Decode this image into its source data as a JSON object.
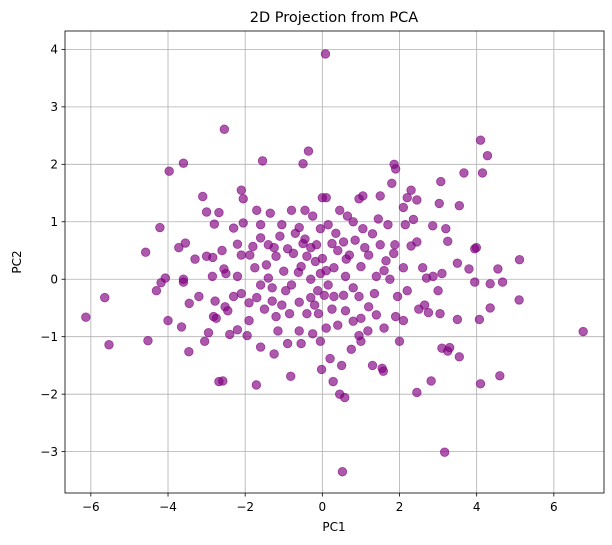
{
  "chart_data": {
    "type": "scatter",
    "title": "2D Projection from PCA",
    "xlabel": "PC1",
    "ylabel": "PC2",
    "xlim": [
      -6.67,
      7.3
    ],
    "ylim": [
      -3.72,
      4.32
    ],
    "xticks": [
      -6,
      -4,
      -2,
      0,
      2,
      4,
      6
    ],
    "yticks": [
      -3,
      -2,
      -1,
      0,
      1,
      2,
      3,
      4
    ],
    "grid": true,
    "marker_color": "#800080",
    "marker_alpha": 0.65,
    "series": [
      {
        "points": [
          [
            0.08,
            3.92
          ],
          [
            -2.54,
            2.61
          ],
          [
            -1.55,
            2.06
          ],
          [
            -3.6,
            2.02
          ],
          [
            -0.5,
            2.01
          ],
          [
            -0.36,
            2.23
          ],
          [
            -3.97,
            1.88
          ],
          [
            -2.1,
            1.55
          ],
          [
            -2.05,
            1.4
          ],
          [
            -3.1,
            1.44
          ],
          [
            -3.0,
            1.17
          ],
          [
            -2.68,
            1.16
          ],
          [
            -2.8,
            0.96
          ],
          [
            -2.3,
            0.89
          ],
          [
            -1.7,
            1.2
          ],
          [
            -1.35,
            1.15
          ],
          [
            -0.8,
            1.2
          ],
          [
            0.0,
            1.42
          ],
          [
            0.1,
            1.42
          ],
          [
            0.8,
            1.0
          ],
          [
            0.95,
            1.4
          ],
          [
            1.05,
            1.45
          ],
          [
            1.5,
            1.45
          ],
          [
            1.8,
            1.67
          ],
          [
            1.86,
            2.0
          ],
          [
            1.9,
            1.92
          ],
          [
            2.15,
            0.95
          ],
          [
            2.2,
            1.42
          ],
          [
            2.45,
            1.38
          ],
          [
            2.3,
            1.55
          ],
          [
            2.36,
            1.04
          ],
          [
            3.07,
            1.7
          ],
          [
            3.03,
            1.32
          ],
          [
            2.86,
            0.93
          ],
          [
            3.2,
            0.88
          ],
          [
            3.25,
            0.66
          ],
          [
            3.67,
            1.85
          ],
          [
            3.55,
            1.28
          ],
          [
            3.99,
            0.55
          ],
          [
            3.95,
            0.53
          ],
          [
            4.1,
            2.42
          ],
          [
            4.28,
            2.15
          ],
          [
            4.15,
            1.85
          ],
          [
            -4.21,
            0.9
          ],
          [
            -4.58,
            0.47
          ],
          [
            -3.72,
            0.55
          ],
          [
            -3.55,
            0.63
          ],
          [
            -3.3,
            0.35
          ],
          [
            -3.0,
            0.4
          ],
          [
            -2.84,
            0.38
          ],
          [
            -2.6,
            0.5
          ],
          [
            -2.2,
            0.61
          ],
          [
            -2.1,
            0.42
          ],
          [
            -1.8,
            0.57
          ],
          [
            -1.6,
            0.72
          ],
          [
            -1.4,
            0.6
          ],
          [
            -1.25,
            0.55
          ],
          [
            -1.1,
            0.75
          ],
          [
            -0.9,
            0.53
          ],
          [
            -0.7,
            0.8
          ],
          [
            -0.6,
            0.9
          ],
          [
            -0.45,
            0.7
          ],
          [
            -0.3,
            0.55
          ],
          [
            -0.15,
            0.6
          ],
          [
            -0.05,
            0.88
          ],
          [
            0.15,
            0.95
          ],
          [
            0.35,
            0.8
          ],
          [
            0.55,
            0.65
          ],
          [
            0.7,
            0.42
          ],
          [
            0.85,
            0.68
          ],
          [
            1.1,
            0.55
          ],
          [
            1.3,
            0.79
          ],
          [
            1.5,
            0.6
          ],
          [
            1.65,
            0.32
          ],
          [
            1.85,
            0.45
          ],
          [
            2.3,
            0.58
          ],
          [
            2.6,
            0.2
          ],
          [
            2.87,
            0.05
          ],
          [
            3.1,
            0.1
          ],
          [
            3.5,
            0.28
          ],
          [
            3.8,
            0.18
          ],
          [
            4.35,
            -0.08
          ],
          [
            4.55,
            0.18
          ],
          [
            5.11,
            0.34
          ],
          [
            -4.07,
            0.02
          ],
          [
            -4.18,
            -0.06
          ],
          [
            -4.3,
            -0.2
          ],
          [
            -3.6,
            -0.0
          ],
          [
            -3.45,
            -0.42
          ],
          [
            -3.2,
            -0.3
          ],
          [
            -2.78,
            -0.38
          ],
          [
            -2.52,
            -0.48
          ],
          [
            -2.3,
            -0.3
          ],
          [
            -2.1,
            -0.25
          ],
          [
            -1.9,
            -0.41
          ],
          [
            -1.7,
            -0.32
          ],
          [
            -1.5,
            -0.52
          ],
          [
            -1.3,
            -0.38
          ],
          [
            -1.05,
            -0.45
          ],
          [
            -0.85,
            -0.6
          ],
          [
            -0.6,
            -0.4
          ],
          [
            -0.4,
            -0.6
          ],
          [
            -0.2,
            -0.45
          ],
          [
            0.05,
            -0.28
          ],
          [
            0.25,
            -0.52
          ],
          [
            0.4,
            -0.8
          ],
          [
            0.6,
            -0.55
          ],
          [
            0.8,
            -0.73
          ],
          [
            1.0,
            -0.68
          ],
          [
            1.2,
            -0.48
          ],
          [
            1.4,
            -0.62
          ],
          [
            1.6,
            -0.85
          ],
          [
            1.9,
            -0.65
          ],
          [
            2.1,
            -0.72
          ],
          [
            2.5,
            -0.52
          ],
          [
            2.75,
            -0.58
          ],
          [
            3.05,
            -0.6
          ],
          [
            3.5,
            -0.7
          ],
          [
            4.07,
            -0.7
          ],
          [
            4.35,
            -0.5
          ],
          [
            5.1,
            -0.36
          ],
          [
            -6.13,
            -0.66
          ],
          [
            -5.64,
            -0.32
          ],
          [
            -5.53,
            -1.14
          ],
          [
            -4.52,
            -1.07
          ],
          [
            -4.0,
            -0.72
          ],
          [
            -3.65,
            -0.83
          ],
          [
            -3.46,
            -1.26
          ],
          [
            -3.05,
            -1.08
          ],
          [
            -2.95,
            -0.93
          ],
          [
            -2.82,
            -0.65
          ],
          [
            -2.75,
            -0.68
          ],
          [
            -2.4,
            -0.96
          ],
          [
            -2.2,
            -0.88
          ],
          [
            -1.95,
            -0.98
          ],
          [
            -1.6,
            -1.18
          ],
          [
            -1.25,
            -1.3
          ],
          [
            -0.9,
            -1.12
          ],
          [
            -0.55,
            -1.12
          ],
          [
            -0.25,
            -0.95
          ],
          [
            -0.05,
            -1.08
          ],
          [
            0.2,
            -1.38
          ],
          [
            0.5,
            -1.5
          ],
          [
            0.75,
            -1.22
          ],
          [
            1.0,
            -1.08
          ],
          [
            1.3,
            -1.5
          ],
          [
            1.55,
            -1.55
          ],
          [
            2.0,
            -1.08
          ],
          [
            3.1,
            -1.2
          ],
          [
            3.3,
            -1.19
          ],
          [
            3.55,
            -1.35
          ],
          [
            3.25,
            -1.25
          ],
          [
            -2.68,
            -1.78
          ],
          [
            -2.58,
            -1.77
          ],
          [
            -1.71,
            -1.84
          ],
          [
            -0.82,
            -1.69
          ],
          [
            -0.02,
            -1.57
          ],
          [
            0.28,
            -1.78
          ],
          [
            0.45,
            -2.0
          ],
          [
            0.58,
            -2.06
          ],
          [
            1.58,
            -1.6
          ],
          [
            2.82,
            -1.77
          ],
          [
            2.45,
            -1.97
          ],
          [
            4.1,
            -1.82
          ],
          [
            4.6,
            -1.68
          ],
          [
            6.76,
            -0.91
          ],
          [
            0.52,
            -3.35
          ],
          [
            3.17,
            -3.01
          ],
          [
            -0.18,
            0.31
          ],
          [
            0.1,
            0.15
          ],
          [
            -0.3,
            0.0
          ],
          [
            0.3,
            0.2
          ],
          [
            -0.55,
            0.22
          ],
          [
            0.6,
            0.05
          ],
          [
            -1.0,
            0.14
          ],
          [
            1.0,
            0.22
          ],
          [
            -1.4,
            0.02
          ],
          [
            1.4,
            0.05
          ],
          [
            -1.75,
            0.2
          ],
          [
            1.75,
            0.0
          ],
          [
            -2.5,
            0.1
          ],
          [
            2.1,
            0.2
          ],
          [
            -0.8,
            -0.1
          ],
          [
            0.8,
            -0.15
          ],
          [
            0.4,
            0.5
          ],
          [
            -0.4,
            0.4
          ],
          [
            1.2,
            0.42
          ],
          [
            -1.2,
            0.4
          ],
          [
            1.6,
            0.15
          ],
          [
            -1.6,
            -0.1
          ],
          [
            2.2,
            -0.2
          ],
          [
            -2.2,
            0.05
          ],
          [
            0.95,
            -0.3
          ],
          [
            -0.95,
            -0.2
          ],
          [
            0.15,
            -0.1
          ],
          [
            -0.12,
            -0.2
          ],
          [
            2.7,
            0.02
          ],
          [
            -2.85,
            0.05
          ],
          [
            3.0,
            -0.2
          ],
          [
            -3.6,
            -0.05
          ],
          [
            0.62,
            0.35
          ],
          [
            -0.62,
            0.12
          ],
          [
            1.88,
            0.6
          ],
          [
            -1.88,
            0.42
          ],
          [
            0.3,
            -0.3
          ],
          [
            -0.3,
            -0.32
          ],
          [
            4.67,
            -0.05
          ],
          [
            2.45,
            0.65
          ],
          [
            -2.45,
            -0.55
          ],
          [
            3.95,
            -0.05
          ],
          [
            0.45,
            1.2
          ],
          [
            -0.45,
            1.2
          ],
          [
            1.05,
            0.88
          ],
          [
            -1.05,
            0.95
          ],
          [
            0.65,
            1.1
          ],
          [
            -0.25,
            1.1
          ],
          [
            0.25,
            0.62
          ],
          [
            -0.75,
            0.45
          ],
          [
            1.7,
            0.95
          ],
          [
            -1.6,
            0.95
          ],
          [
            -2.05,
            0.98
          ],
          [
            2.1,
            1.25
          ],
          [
            -1.2,
            -0.65
          ],
          [
            1.18,
            -0.9
          ],
          [
            -0.1,
            -0.6
          ],
          [
            0.95,
            -0.98
          ],
          [
            -1.9,
            -0.72
          ],
          [
            1.95,
            -0.3
          ],
          [
            -0.6,
            -0.9
          ],
          [
            0.1,
            -0.85
          ],
          [
            -1.15,
            -0.9
          ],
          [
            1.35,
            -0.25
          ],
          [
            -1.3,
            -0.15
          ],
          [
            2.65,
            -0.45
          ],
          [
            -2.55,
            0.18
          ],
          [
            0.55,
            -0.28
          ],
          [
            -0.5,
            0.62
          ],
          [
            1.45,
            1.05
          ],
          [
            -1.45,
            0.25
          ],
          [
            0.0,
            0.36
          ],
          [
            -0.05,
            0.1
          ]
        ]
      }
    ]
  }
}
